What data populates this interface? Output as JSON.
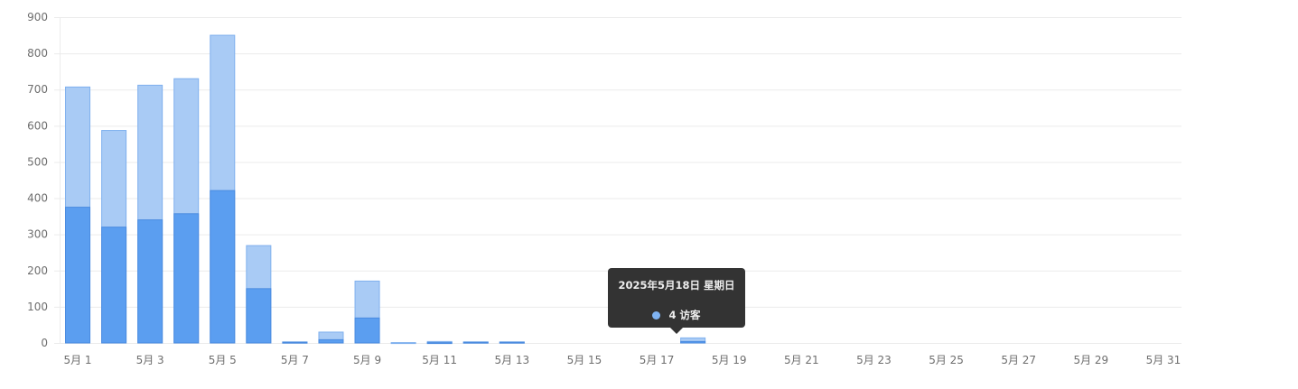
{
  "chart_data": {
    "type": "bar",
    "mode": "overlap",
    "categories": [
      "5月 1",
      "5月 2",
      "5月 3",
      "5月 4",
      "5月 5",
      "5月 6",
      "5月 7",
      "5月 8",
      "5月 9",
      "5月 10",
      "5月 11",
      "5月 12",
      "5月 13",
      "5月 14",
      "5月 15",
      "5月 16",
      "5月 17",
      "5月 18",
      "5月 19",
      "5月 20",
      "5月 21",
      "5月 22",
      "5月 23",
      "5月 24",
      "5月 25",
      "5月 26",
      "5月 27",
      "5月 28",
      "5月 29",
      "5月 30",
      "5月 31"
    ],
    "tick_labels": [
      "5月 1",
      "5月 3",
      "5月 5",
      "5月 7",
      "5月 9",
      "5月 11",
      "5月 13",
      "5月 15",
      "5月 17",
      "5月 19",
      "5月 21",
      "5月 23",
      "5月 25",
      "5月 27",
      "5月 29",
      "5月 31"
    ],
    "series": [
      {
        "values": [
          707,
          587,
          712,
          730,
          850,
          269,
          3,
          30,
          171,
          1,
          4,
          3,
          3,
          0,
          0,
          0,
          0,
          14,
          0,
          0,
          0,
          0,
          0,
          0,
          0,
          0,
          0,
          0,
          0,
          0,
          0
        ],
        "color": "#a9cbf5",
        "border": "#7fb0ee"
      },
      {
        "name": "访客",
        "values": [
          375,
          320,
          340,
          357,
          421,
          150,
          2,
          9,
          69,
          0,
          1,
          2,
          2,
          0,
          0,
          0,
          0,
          4,
          0,
          0,
          0,
          0,
          0,
          0,
          0,
          0,
          0,
          0,
          0,
          0,
          0
        ],
        "color": "#5b9ef0",
        "border": "#4a8be0"
      }
    ],
    "yticks": [
      0,
      100,
      200,
      300,
      400,
      500,
      600,
      700,
      800,
      900
    ],
    "ylim": [
      0,
      900
    ],
    "grid": true,
    "tooltip": {
      "title": "2025年5月18日 星期日",
      "value": "4",
      "label": "访客",
      "dot_color": "#7fb3f2"
    }
  }
}
